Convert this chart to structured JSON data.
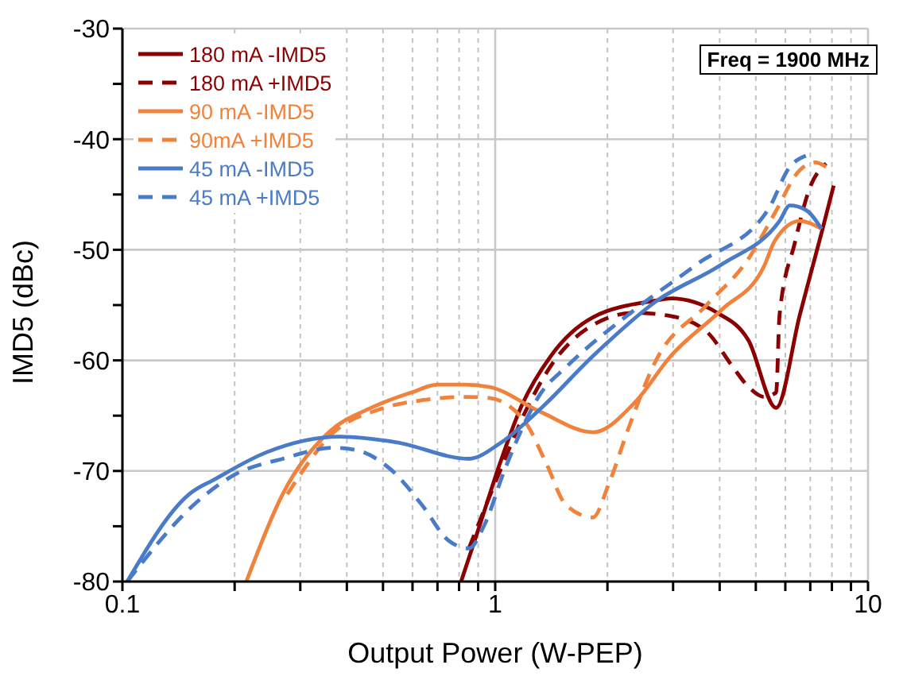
{
  "chart_data": {
    "type": "line",
    "xlabel": "Output Power (W-PEP)",
    "ylabel": "IMD5 (dBc)",
    "log": "x",
    "grid": true,
    "legend": "top left",
    "marker": "none",
    "xlim": [
      0.1,
      10
    ],
    "xticks": [
      0.1,
      {
        "value": 0.2,
        "label": null
      },
      {
        "value": 0.3,
        "label": null
      },
      {
        "value": 0.4,
        "label": null
      },
      {
        "value": 0.5,
        "label": null
      },
      {
        "value": 0.6,
        "label": null
      },
      {
        "value": 0.7,
        "label": null
      },
      {
        "value": 0.8,
        "label": null
      },
      {
        "value": 0.9,
        "label": null
      },
      1,
      {
        "value": 2,
        "label": null
      },
      {
        "value": 3,
        "label": null
      },
      {
        "value": 4,
        "label": null
      },
      {
        "value": 5,
        "label": null
      },
      {
        "value": 6,
        "label": null
      },
      {
        "value": 7,
        "label": null
      },
      {
        "value": 8,
        "label": null
      },
      {
        "value": 9,
        "label": null
      },
      10
    ],
    "ylim": [
      -80,
      -30
    ],
    "yticks": [
      -80,
      {
        "value": -75,
        "label": null
      },
      -70,
      {
        "value": -65,
        "label": null
      },
      -60,
      {
        "value": -55,
        "label": null
      },
      -50,
      {
        "value": -45,
        "label": null
      },
      -40,
      {
        "value": -35,
        "label": null
      },
      -30
    ],
    "annotations": [
      "Freq = 1900 MHz"
    ],
    "series": [
      {
        "name": "180 mA -IMD5",
        "color": "#8b0000",
        "line_style": "solid",
        "x": [
          0.81,
          0.909,
          1.03,
          1.17,
          1.41,
          1.83,
          2.69,
          2.96,
          3.94,
          4.78,
          5.67,
          6.56,
          7.5,
          8.09
        ],
        "values": [
          -80,
          -74.9,
          -69.3,
          -64.3,
          -59.6,
          -56.1,
          -54.6,
          -54.4,
          -55.7,
          -58.2,
          -64.3,
          -55.9,
          -48.5,
          -44.2
        ]
      },
      {
        "name": "180 mA +IMD5",
        "color": "#8b0000",
        "line_style": "dashed",
        "x": [
          0.85,
          1.03,
          1.21,
          1.41,
          1.83,
          2.37,
          2.96,
          3.69,
          4.34,
          4.78,
          5.26,
          5.67,
          5.79,
          6.36,
          7.0,
          7.72
        ],
        "values": [
          -77,
          -70,
          -64.5,
          -60.5,
          -56.8,
          -55.7,
          -56,
          -57.4,
          -60.6,
          -62.4,
          -63.3,
          -62.9,
          -55.9,
          -49.4,
          -44.3,
          -42.2
        ]
      },
      {
        "name": "90 mA -IMD5",
        "color": "#f0823c",
        "line_style": "solid",
        "x": [
          0.215,
          0.269,
          0.358,
          0.464,
          0.596,
          0.701,
          0.826,
          0.962,
          1.33,
          1.83,
          2.37,
          2.96,
          4.06,
          5.26,
          5.62,
          6.56,
          7.5
        ],
        "values": [
          -80,
          -72.1,
          -66.5,
          -64.3,
          -62.9,
          -62.2,
          -62.2,
          -62.4,
          -64.7,
          -66.5,
          -63.8,
          -59.6,
          -55.4,
          -51.5,
          -49.2,
          -47.4,
          -48.1
        ]
      },
      {
        "name": "90mA +IMD5",
        "color": "#f0823c",
        "line_style": "dashed",
        "x": [
          0.277,
          0.369,
          0.492,
          0.637,
          0.826,
          0.962,
          1.21,
          1.37,
          1.55,
          1.83,
          2.01,
          2.28,
          2.69,
          3.69,
          4.78,
          5.62,
          6.56,
          7.21,
          7.72
        ],
        "values": [
          -72.1,
          -66.5,
          -64.4,
          -63.6,
          -63.3,
          -63.4,
          -65.7,
          -69.3,
          -73.1,
          -74.2,
          -71.3,
          -66.1,
          -60.1,
          -55,
          -50.8,
          -46.7,
          -42.8,
          -42.1,
          -42.5
        ]
      },
      {
        "name": "45 mA -IMD5",
        "color": "#4a7bc8",
        "line_style": "solid",
        "x": [
          0.103,
          0.151,
          0.178,
          0.244,
          0.383,
          0.541,
          0.85,
          1.03,
          1.33,
          1.83,
          2.69,
          4.06,
          5.79,
          6.17,
          6.81,
          7.5
        ],
        "values": [
          -80,
          -72.1,
          -70.7,
          -68.3,
          -66.9,
          -67.4,
          -68.9,
          -67.5,
          -64.3,
          -59.6,
          -54.7,
          -51.3,
          -47.4,
          -46.0,
          -46.4,
          -48.1
        ]
      },
      {
        "name": "45 mA +IMD5",
        "color": "#4a7bc8",
        "line_style": "dashed",
        "x": [
          0.103,
          0.161,
          0.201,
          0.269,
          0.369,
          0.422,
          0.526,
          0.637,
          0.75,
          0.85,
          0.935,
          1.06,
          1.33,
          1.55,
          2.37,
          3.48,
          5.41,
          6.17,
          6.81
        ],
        "values": [
          -80,
          -72.6,
          -70.3,
          -68.9,
          -67.9,
          -68.1,
          -69.9,
          -73.1,
          -76.3,
          -77.0,
          -74.9,
          -69.9,
          -62.9,
          -60.6,
          -55.4,
          -51.3,
          -46.3,
          -42.5,
          -41.5
        ]
      }
    ]
  }
}
